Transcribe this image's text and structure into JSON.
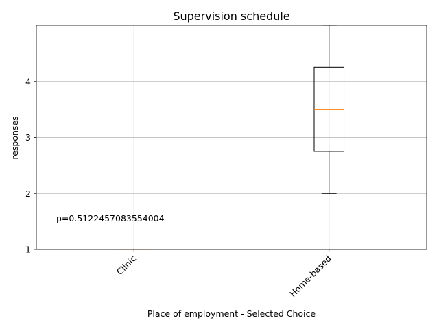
{
  "chart_data": {
    "type": "boxplot",
    "title": "Supervision schedule",
    "xlabel": "Place of employment - Selected Choice",
    "ylabel": "responses",
    "categories": [
      "Clinic",
      "Home-based"
    ],
    "boxes": [
      {
        "category": "Clinic",
        "whisker_low": 1,
        "q1": 1,
        "median": 1,
        "q3": 1,
        "whisker_high": 1
      },
      {
        "category": "Home-based",
        "whisker_low": 2,
        "q1": 2.75,
        "median": 3.5,
        "q3": 4.25,
        "whisker_high": 5
      }
    ],
    "ylim": [
      1,
      5
    ],
    "yticks": [
      "1",
      "2",
      "3",
      "4"
    ],
    "grid": true,
    "annotation": "p=0.5122457083554004",
    "colors": {
      "box": "#000000",
      "median": "#ff7f0e",
      "grid": "#b0b0b0"
    }
  }
}
